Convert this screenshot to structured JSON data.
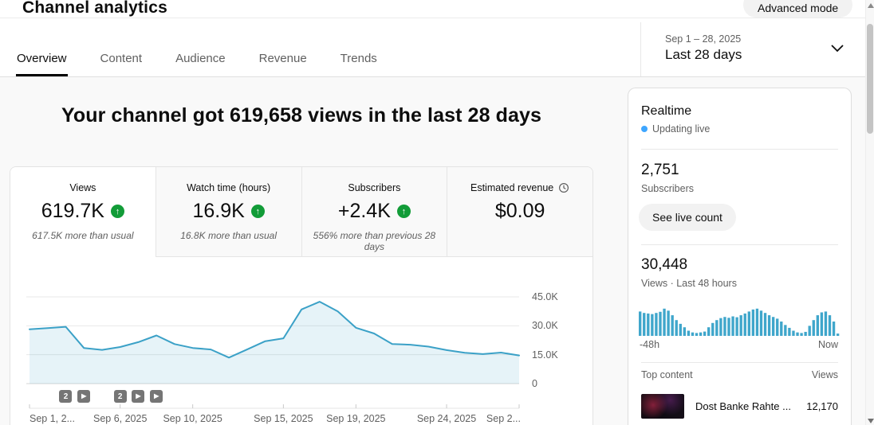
{
  "header": {
    "title": "Channel analytics",
    "advanced_mode_label": "Advanced mode"
  },
  "tabs": [
    {
      "label": "Overview",
      "active": true
    },
    {
      "label": "Content",
      "active": false
    },
    {
      "label": "Audience",
      "active": false
    },
    {
      "label": "Revenue",
      "active": false
    },
    {
      "label": "Trends",
      "active": false
    }
  ],
  "date_range": {
    "range": "Sep 1 – 28, 2025",
    "preset": "Last 28 days"
  },
  "headline": "Your channel got 619,658 views in the last 28 days",
  "metric_cards": [
    {
      "label": "Views",
      "value": "619.7K",
      "trend": "up",
      "note": "617.5K more than usual",
      "selected": true
    },
    {
      "label": "Watch time (hours)",
      "value": "16.9K",
      "trend": "up",
      "note": "16.8K more than usual",
      "selected": false
    },
    {
      "label": "Subscribers",
      "value": "+2.4K",
      "trend": "up",
      "note": "556% more than previous 28 days",
      "selected": false
    },
    {
      "label": "Estimated revenue",
      "value": "$0.09",
      "trend": "none",
      "icon": "clock-icon",
      "note": "",
      "selected": false
    }
  ],
  "chart_data": [
    {
      "type": "line",
      "title": "Views per day (last 28 days)",
      "categories": [
        "Sep 1",
        "Sep 2",
        "Sep 3",
        "Sep 4",
        "Sep 5",
        "Sep 6",
        "Sep 7",
        "Sep 8",
        "Sep 9",
        "Sep 10",
        "Sep 11",
        "Sep 12",
        "Sep 13",
        "Sep 14",
        "Sep 15",
        "Sep 16",
        "Sep 17",
        "Sep 18",
        "Sep 19",
        "Sep 20",
        "Sep 21",
        "Sep 22",
        "Sep 23",
        "Sep 24",
        "Sep 25",
        "Sep 26",
        "Sep 27",
        "Sep 28"
      ],
      "values": [
        28200,
        28800,
        29500,
        18500,
        17500,
        19000,
        21500,
        25000,
        20500,
        18500,
        17700,
        13500,
        17700,
        22000,
        23500,
        38500,
        42500,
        37500,
        29000,
        26000,
        20500,
        20200,
        19200,
        17400,
        16000,
        15300,
        16100,
        14600
      ],
      "xlabel": "",
      "ylabel": "",
      "ylim": [
        0,
        48000
      ],
      "grid": true,
      "legend": "none",
      "yticks": [
        {
          "v": 0,
          "label": "0"
        },
        {
          "v": 15000,
          "label": "15.0K"
        },
        {
          "v": 30000,
          "label": "30.0K"
        },
        {
          "v": 45000,
          "label": "45.0K"
        }
      ],
      "xticks": [
        {
          "day": 1,
          "label": "Sep 1, 2...",
          "align": "left"
        },
        {
          "day": 6,
          "label": "Sep 6, 2025",
          "align": "center"
        },
        {
          "day": 10,
          "label": "Sep 10, 2025",
          "align": "center"
        },
        {
          "day": 15,
          "label": "Sep 15, 2025",
          "align": "center"
        },
        {
          "day": 19,
          "label": "Sep 19, 2025",
          "align": "center"
        },
        {
          "day": 24,
          "label": "Sep 24, 2025",
          "align": "center"
        },
        {
          "day": 28,
          "label": "Sep 2...",
          "align": "right"
        }
      ],
      "markers": [
        {
          "day": 3,
          "kind": "count",
          "label": "2"
        },
        {
          "day": 4,
          "kind": "video",
          "label": ""
        },
        {
          "day": 6,
          "kind": "count",
          "label": "2"
        },
        {
          "day": 7,
          "kind": "video",
          "label": ""
        },
        {
          "day": 8,
          "kind": "video",
          "label": ""
        }
      ]
    },
    {
      "type": "bar",
      "title": "Realtime views, last 48 hours",
      "yaxis": "relative (no scale shown)",
      "values": [
        0.85,
        0.8,
        0.78,
        0.76,
        0.8,
        0.84,
        0.95,
        0.88,
        0.72,
        0.55,
        0.42,
        0.3,
        0.18,
        0.12,
        0.1,
        0.12,
        0.15,
        0.3,
        0.45,
        0.55,
        0.62,
        0.66,
        0.63,
        0.68,
        0.65,
        0.72,
        0.78,
        0.85,
        0.92,
        0.95,
        0.88,
        0.8,
        0.72,
        0.66,
        0.6,
        0.5,
        0.38,
        0.28,
        0.18,
        0.12,
        0.1,
        0.14,
        0.35,
        0.55,
        0.72,
        0.82,
        0.85,
        0.72,
        0.5,
        0.08
      ],
      "xlabel_left": "-48h",
      "xlabel_right": "Now"
    }
  ],
  "realtime": {
    "title": "Realtime",
    "status": "Updating live",
    "subscribers_value": "2,751",
    "subscribers_label": "Subscribers",
    "live_count_button": "See live count",
    "views_value": "30,448",
    "views_label": "Views · Last 48 hours",
    "axis_left": "-48h",
    "axis_right": "Now",
    "top_content_label": "Top content",
    "views_column_label": "Views",
    "items": [
      {
        "title": "Dost Banke Rahte ...",
        "views": "12,170"
      }
    ]
  },
  "colors": {
    "line": "#3ba1c7",
    "line_fill": "rgba(59,161,199,0.13)",
    "bars": "#3fa6cb",
    "positive_badge": "#129c38",
    "live_dot": "#3ea6ff",
    "grid": "#e8e8e8",
    "axis_text": "#606060"
  }
}
